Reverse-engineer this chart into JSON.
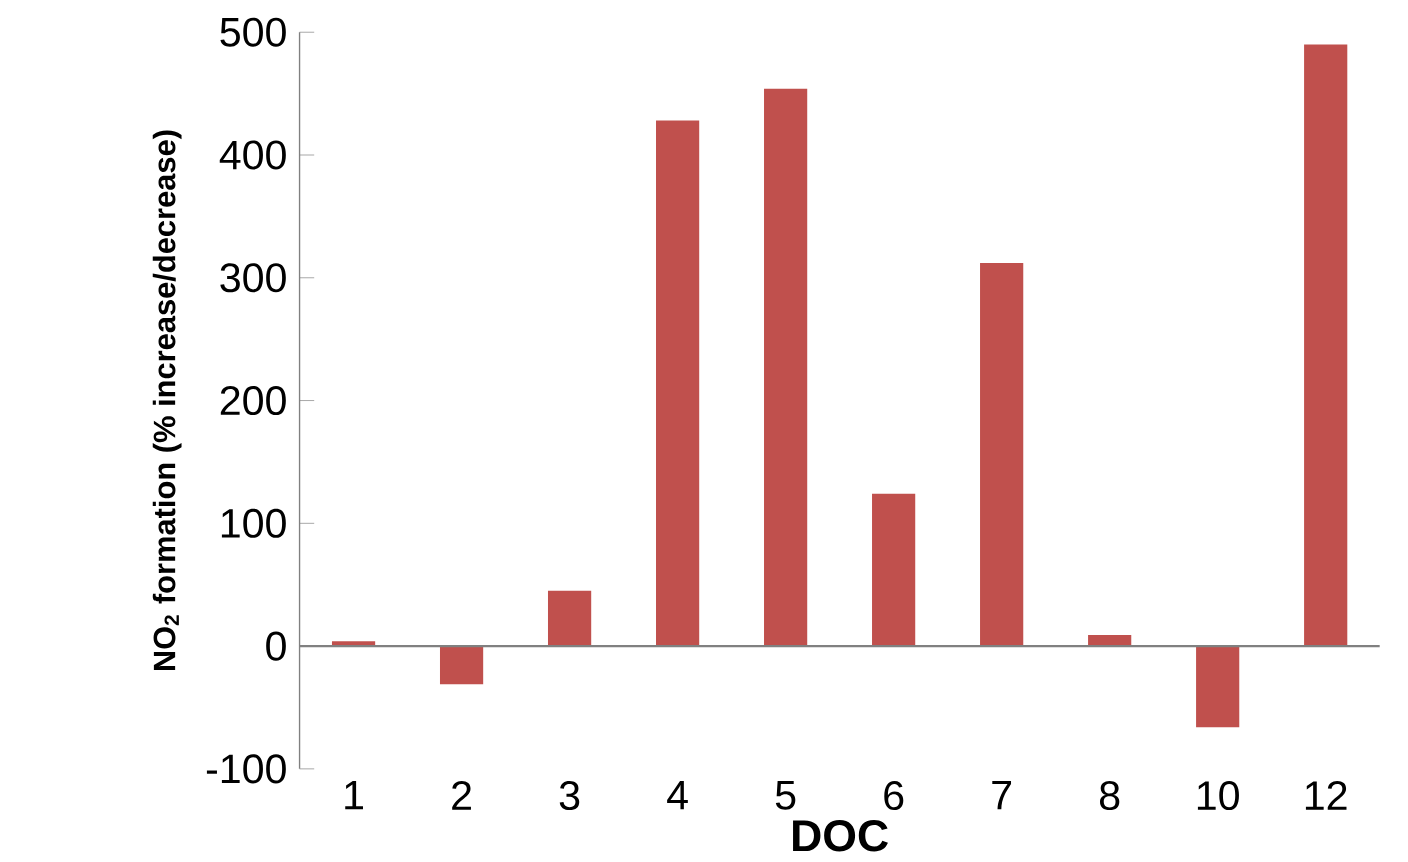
{
  "chart_data": {
    "type": "bar",
    "xlabel": "DOC",
    "ylabel": "NO$_{2}$ formation (% increase/decrease)",
    "categories": [
      "1",
      "2",
      "3",
      "4",
      "5",
      "6",
      "7",
      "8",
      "10",
      "12"
    ],
    "values": [
      4,
      -31,
      45,
      428,
      454,
      124,
      312,
      9,
      -66,
      490
    ],
    "color": "#c0504d",
    "ylim": [
      -100,
      500
    ],
    "yticks": [
      -100,
      0,
      100,
      200,
      300,
      400,
      500
    ]
  }
}
